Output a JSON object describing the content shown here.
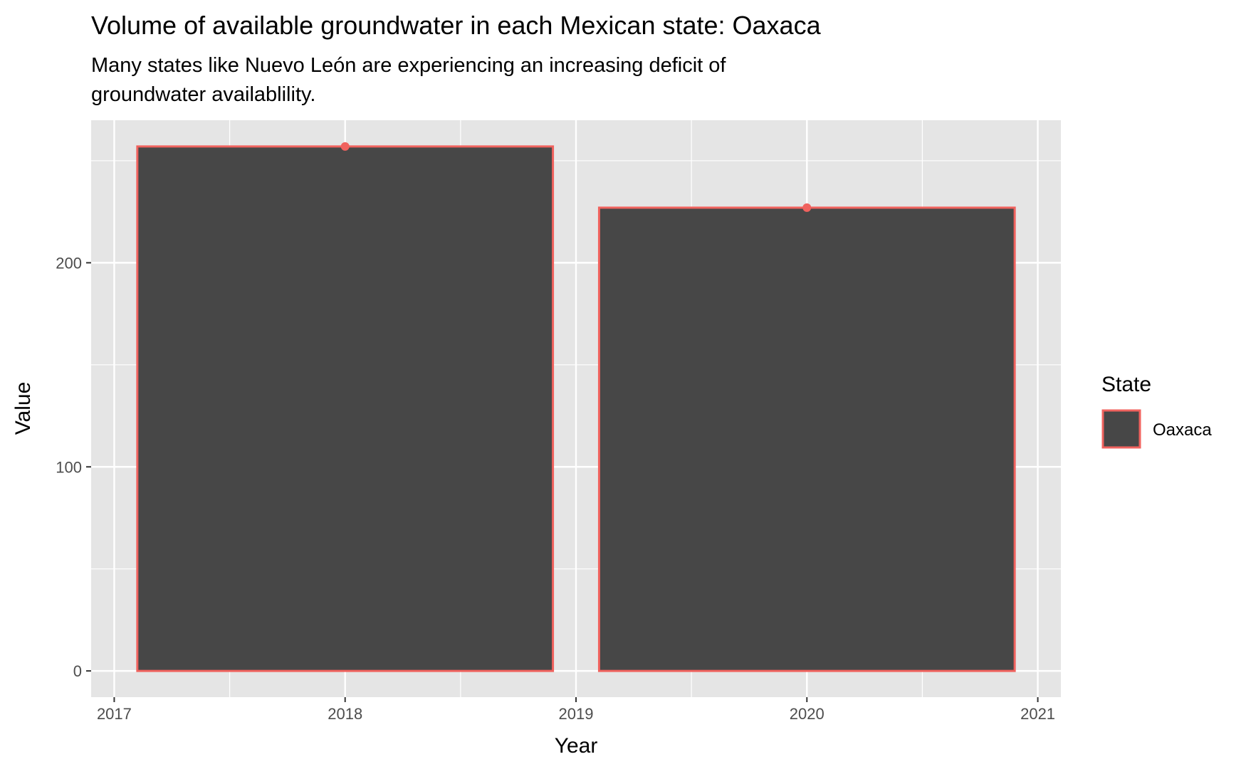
{
  "chart_data": {
    "type": "bar",
    "title": "Volume of available groundwater in each Mexican state: Oaxaca",
    "subtitle_lines": [
      "Many states like Nuevo León are experiencing an increasing deficit of",
      "groundwater availablility."
    ],
    "xlabel": "Year",
    "ylabel": "Value",
    "x": [
      2018,
      2020
    ],
    "series": [
      {
        "name": "Oaxaca",
        "values": [
          257,
          227
        ]
      }
    ],
    "bar_width_years": 1.8,
    "xlim": [
      2016.9,
      2021.1
    ],
    "ylim": [
      -12.85,
      269.85
    ],
    "x_ticks": [
      "2017",
      "2018",
      "2019",
      "2020",
      "2021"
    ],
    "x_tick_values": [
      2017,
      2018,
      2019,
      2020,
      2021
    ],
    "y_ticks": [
      "0",
      "100",
      "200"
    ],
    "y_tick_values": [
      0,
      100,
      200
    ],
    "grid": true,
    "legend": {
      "title": "State",
      "position": "right"
    },
    "colors": {
      "panel_background": "#e5e5e5",
      "grid": "#ffffff",
      "bar_fill": "#474747",
      "bar_outline": "#f0625e",
      "point": "#f0625e"
    }
  }
}
